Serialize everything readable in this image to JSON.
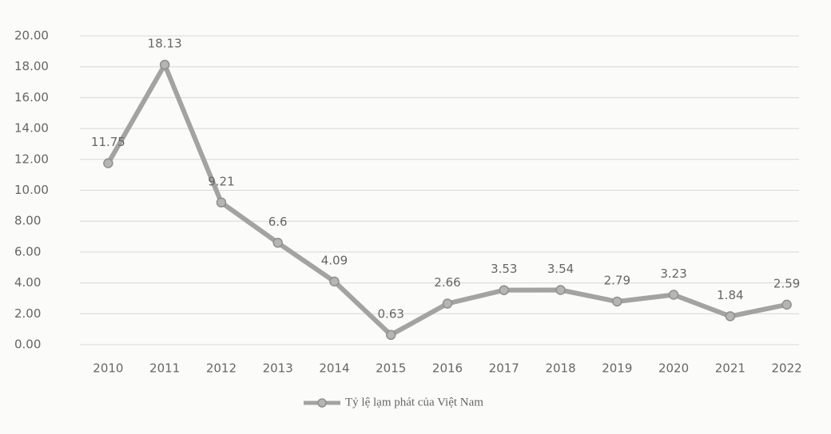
{
  "chart_data": {
    "type": "line",
    "categories": [
      "2010",
      "2011",
      "2012",
      "2013",
      "2014",
      "2015",
      "2016",
      "2017",
      "2018",
      "2019",
      "2020",
      "2021",
      "2022"
    ],
    "series": [
      {
        "name": "Tỷ lệ lạm phát của Việt Nam",
        "color": "#a3a3a3",
        "values": [
          11.75,
          18.13,
          9.21,
          6.6,
          4.09,
          0.63,
          2.66,
          3.53,
          3.54,
          2.79,
          3.23,
          1.84,
          2.59
        ]
      }
    ],
    "ylim": [
      0,
      20
    ],
    "yticks": [
      {
        "value": 0,
        "label": "0.00"
      },
      {
        "value": 2,
        "label": "2.00"
      },
      {
        "value": 4,
        "label": "4.00"
      },
      {
        "value": 6,
        "label": "6.00"
      },
      {
        "value": 8,
        "label": "8.00"
      },
      {
        "value": 10,
        "label": "10.00"
      },
      {
        "value": 12,
        "label": "12.00"
      },
      {
        "value": 14,
        "label": "14.00"
      },
      {
        "value": 16,
        "label": "16.00"
      },
      {
        "value": 18,
        "label": "18.00"
      },
      {
        "value": 20,
        "label": "20.00"
      }
    ],
    "grid": true,
    "legend": "bottom"
  }
}
